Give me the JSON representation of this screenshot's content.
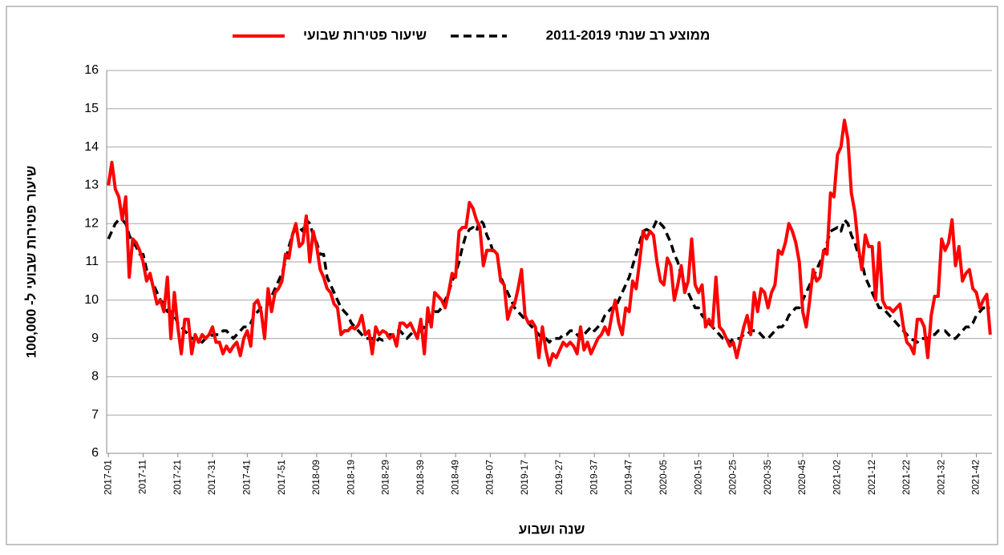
{
  "chart_data": {
    "type": "line",
    "x_label": "שנה ושבוע",
    "y_label": "שיעור פטירות שבועי ל- 100,000",
    "ylim": [
      6,
      16
    ],
    "yticks": [
      6,
      7,
      8,
      9,
      10,
      11,
      12,
      13,
      14,
      15,
      16
    ],
    "grid": true,
    "legend": "top",
    "categories": [
      "2017-01",
      null,
      null,
      null,
      null,
      null,
      null,
      null,
      null,
      null,
      "2017-11",
      null,
      null,
      null,
      null,
      null,
      null,
      null,
      null,
      null,
      "2017-21",
      null,
      null,
      null,
      null,
      null,
      null,
      null,
      null,
      null,
      "2017-31",
      null,
      null,
      null,
      null,
      null,
      null,
      null,
      null,
      null,
      "2017-41",
      null,
      null,
      null,
      null,
      null,
      null,
      null,
      null,
      null,
      "2017-51",
      null,
      null,
      null,
      null,
      null,
      null,
      null,
      null,
      null,
      "2018-09",
      null,
      null,
      null,
      null,
      null,
      null,
      null,
      null,
      null,
      "2018-19",
      null,
      null,
      null,
      null,
      null,
      null,
      null,
      null,
      null,
      "2018-29",
      null,
      null,
      null,
      null,
      null,
      null,
      null,
      null,
      null,
      "2018-39",
      null,
      null,
      null,
      null,
      null,
      null,
      null,
      null,
      null,
      "2018-49",
      null,
      null,
      null,
      null,
      null,
      null,
      null,
      null,
      null,
      "2019-07",
      null,
      null,
      null,
      null,
      null,
      null,
      null,
      null,
      null,
      "2019-17",
      null,
      null,
      null,
      null,
      null,
      null,
      null,
      null,
      null,
      "2019-27",
      null,
      null,
      null,
      null,
      null,
      null,
      null,
      null,
      null,
      "2019-37",
      null,
      null,
      null,
      null,
      null,
      null,
      null,
      null,
      null,
      "2019-47",
      null,
      null,
      null,
      null,
      null,
      null,
      null,
      null,
      null,
      "2020-05",
      null,
      null,
      null,
      null,
      null,
      null,
      null,
      null,
      null,
      "2020-15",
      null,
      null,
      null,
      null,
      null,
      null,
      null,
      null,
      null,
      "2020-25",
      null,
      null,
      null,
      null,
      null,
      null,
      null,
      null,
      null,
      "2020-35",
      null,
      null,
      null,
      null,
      null,
      null,
      null,
      null,
      null,
      "2020-45",
      null,
      null,
      null,
      null,
      null,
      null,
      null,
      null,
      null,
      "2021-02",
      null,
      null,
      null,
      null,
      null,
      null,
      null,
      null,
      null,
      "2021-12",
      null,
      null,
      null,
      null,
      null,
      null,
      null,
      null,
      null,
      "2021-22",
      null,
      null,
      null,
      null,
      null,
      null,
      null,
      null,
      null,
      "2021-32",
      null,
      null,
      null,
      null,
      null,
      null,
      null,
      null,
      null,
      "2021-42",
      null,
      null,
      null,
      null
    ],
    "series": [
      {
        "name": "שיעור פטירות שבועי",
        "color": "#ff0000",
        "dashed": false,
        "values": [
          13.0,
          13.6,
          12.9,
          12.7,
          12.1,
          12.7,
          10.6,
          11.6,
          11.5,
          11.3,
          11.0,
          10.5,
          10.7,
          10.3,
          9.9,
          10.0,
          9.7,
          10.6,
          9.0,
          10.2,
          9.3,
          8.6,
          9.5,
          9.5,
          8.6,
          9.1,
          8.9,
          9.1,
          9.0,
          9.1,
          9.3,
          8.9,
          8.9,
          8.6,
          8.8,
          8.65,
          8.8,
          8.9,
          8.55,
          9.0,
          9.2,
          8.8,
          9.9,
          10.0,
          9.7,
          9.0,
          10.3,
          9.7,
          10.2,
          10.3,
          10.5,
          11.2,
          11.1,
          11.7,
          12.0,
          11.4,
          11.5,
          12.2,
          11.0,
          11.8,
          11.4,
          10.8,
          10.6,
          10.3,
          10.2,
          9.9,
          9.8,
          9.1,
          9.2,
          9.2,
          9.3,
          9.25,
          9.35,
          9.6,
          9.1,
          9.2,
          8.6,
          9.3,
          9.1,
          9.2,
          9.15,
          9.0,
          9.1,
          8.8,
          9.4,
          9.4,
          9.3,
          9.4,
          9.2,
          9.0,
          9.5,
          8.6,
          9.8,
          9.3,
          10.2,
          10.1,
          10.0,
          9.8,
          10.2,
          10.7,
          10.6,
          11.8,
          11.9,
          11.9,
          12.55,
          12.4,
          12.1,
          11.9,
          10.9,
          11.3,
          11.3,
          11.3,
          11.2,
          10.5,
          10.4,
          9.5,
          9.8,
          9.9,
          10.3,
          10.8,
          9.6,
          9.4,
          9.45,
          9.3,
          8.5,
          9.3,
          8.7,
          8.3,
          8.6,
          8.5,
          8.7,
          8.9,
          8.8,
          8.9,
          8.8,
          8.6,
          9.3,
          8.7,
          8.9,
          8.6,
          8.8,
          9.0,
          9.1,
          9.3,
          9.1,
          9.6,
          10.0,
          9.4,
          9.1,
          9.8,
          9.7,
          10.5,
          10.3,
          11.0,
          11.8,
          11.6,
          11.8,
          11.7,
          11.0,
          10.5,
          10.4,
          11.1,
          10.9,
          10.0,
          10.4,
          10.9,
          10.2,
          10.5,
          11.6,
          10.4,
          10.2,
          10.4,
          9.3,
          9.5,
          9.3,
          10.6,
          9.3,
          9.2,
          9.0,
          8.8,
          8.9,
          8.5,
          8.9,
          9.3,
          9.6,
          9.1,
          10.2,
          9.7,
          10.3,
          10.2,
          9.8,
          10.2,
          10.4,
          11.3,
          11.2,
          11.5,
          12.0,
          11.8,
          11.5,
          11.0,
          9.7,
          9.3,
          10.0,
          10.8,
          10.5,
          10.6,
          11.3,
          11.2,
          12.8,
          12.7,
          13.8,
          14.0,
          14.7,
          14.2,
          12.8,
          12.3,
          11.4,
          10.8,
          11.7,
          11.4,
          11.4,
          10.0,
          11.5,
          10.0,
          9.8,
          9.8,
          9.7,
          9.8,
          9.9,
          9.3,
          8.9,
          8.8,
          8.6,
          9.5,
          9.5,
          9.3,
          8.5,
          9.6,
          10.1,
          10.1,
          11.6,
          11.3,
          11.5,
          12.1,
          10.9,
          11.4,
          10.5,
          10.7,
          10.8,
          10.3,
          10.2,
          9.8,
          10.0,
          10.15,
          9.1
        ]
      },
      {
        "name": "ממוצע רב שנתי 2011-2019",
        "color": "#000000",
        "dashed": true,
        "values": [
          11.6,
          11.8,
          12.0,
          12.1,
          12.1,
          12.0,
          11.7,
          11.5,
          11.4,
          11.2,
          11.2,
          10.8,
          10.6,
          10.4,
          10.2,
          10.0,
          9.9,
          9.7,
          9.7,
          9.6,
          9.4,
          9.3,
          9.2,
          9.1,
          9.0,
          9.0,
          9.0,
          8.9,
          9.0,
          9.0,
          9.1,
          9.1,
          9.1,
          9.2,
          9.2,
          9.1,
          9.0,
          9.1,
          9.2,
          9.3,
          9.3,
          9.4,
          9.6,
          9.7,
          9.8,
          9.8,
          9.9,
          10.1,
          10.3,
          10.5,
          10.7,
          11.0,
          11.4,
          11.7,
          11.9,
          11.9,
          11.8,
          12.1,
          12.0,
          11.7,
          11.5,
          11.2,
          11.2,
          10.6,
          10.4,
          10.2,
          10.0,
          9.8,
          9.7,
          9.6,
          9.4,
          9.3,
          9.2,
          9.1,
          9.0,
          9.0,
          9.0,
          8.9,
          9.0,
          8.95,
          9.0,
          9.1,
          9.1,
          9.2,
          9.2,
          9.1,
          9.0,
          9.1,
          9.2,
          9.0,
          9.2,
          9.3,
          9.4,
          9.6,
          9.7,
          9.7,
          9.8,
          10.0,
          10.2,
          10.5,
          10.7,
          11.0,
          11.4,
          11.7,
          11.85,
          11.9,
          11.8,
          12.1,
          12.0,
          11.7,
          11.5,
          11.2,
          11.2,
          10.6,
          10.4,
          10.2,
          10.0,
          9.8,
          9.7,
          9.6,
          9.5,
          9.4,
          9.3,
          9.2,
          9.1,
          9.0,
          9.0,
          8.9,
          9.0,
          9.0,
          9.0,
          9.1,
          9.1,
          9.2,
          9.2,
          9.1,
          9.0,
          9.1,
          9.2,
          9.3,
          9.2,
          9.3,
          9.4,
          9.6,
          9.7,
          9.8,
          9.8,
          10.0,
          10.2,
          10.4,
          10.6,
          10.9,
          11.2,
          11.5,
          11.8,
          11.85,
          11.8,
          11.9,
          12.1,
          12.0,
          11.9,
          11.7,
          11.5,
          11.2,
          11.0,
          10.6,
          10.4,
          10.2,
          10.0,
          9.8,
          9.8,
          9.6,
          9.5,
          9.4,
          9.3,
          9.2,
          9.1,
          9.0,
          9.0,
          8.9,
          9.0,
          9.0,
          9.0,
          9.1,
          9.1,
          9.2,
          9.2,
          9.2,
          9.1,
          9.0,
          9.0,
          9.1,
          9.2,
          9.3,
          9.3,
          9.4,
          9.6,
          9.7,
          9.8,
          9.8,
          10.0,
          10.2,
          10.4,
          10.6,
          10.8,
          11.0,
          11.2,
          11.5,
          11.8,
          11.85,
          11.9,
          11.8,
          12.1,
          12.0,
          11.7,
          11.5,
          11.2,
          11.0,
          10.6,
          10.4,
          10.2,
          10.0,
          9.8,
          9.8,
          9.7,
          9.6,
          9.5,
          9.4,
          9.3,
          9.2,
          9.1,
          9.0,
          8.95,
          8.9,
          9.0,
          9.0,
          9.0,
          9.1,
          9.1,
          9.2,
          9.2,
          9.2,
          9.1,
          9.0,
          9.0,
          9.1,
          9.2,
          9.3,
          9.3,
          9.4,
          9.6,
          9.7,
          9.8,
          9.8,
          9.8
        ]
      }
    ]
  }
}
